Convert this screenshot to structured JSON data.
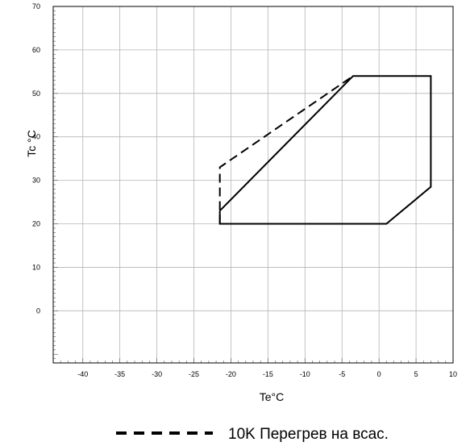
{
  "chart_data": {
    "type": "line",
    "xlabel": "Te°C",
    "ylabel": "Tc °C",
    "xlim": [
      -44,
      10
    ],
    "ylim": [
      -12,
      70
    ],
    "x_ticks": [
      -40,
      -35,
      -30,
      -25,
      -20,
      -15,
      -10,
      -5,
      0,
      5,
      10
    ],
    "y_ticks": [
      0,
      10,
      20,
      30,
      40,
      50,
      60,
      70
    ],
    "grid": true,
    "legend_position": "bottom",
    "series": [
      {
        "style": "solid",
        "color": "#000000",
        "points": [
          [
            -21.5,
            23
          ],
          [
            -3.5,
            54
          ],
          [
            7,
            54
          ],
          [
            7,
            28.5
          ],
          [
            1,
            20
          ],
          [
            -21.5,
            20
          ],
          [
            -21.5,
            23
          ]
        ]
      },
      {
        "name": "10K Перегрев на всас.",
        "style": "dashed",
        "color": "#000000",
        "points": [
          [
            -21.5,
            20
          ],
          [
            -21.5,
            33
          ],
          [
            -3.5,
            54
          ]
        ]
      }
    ]
  }
}
